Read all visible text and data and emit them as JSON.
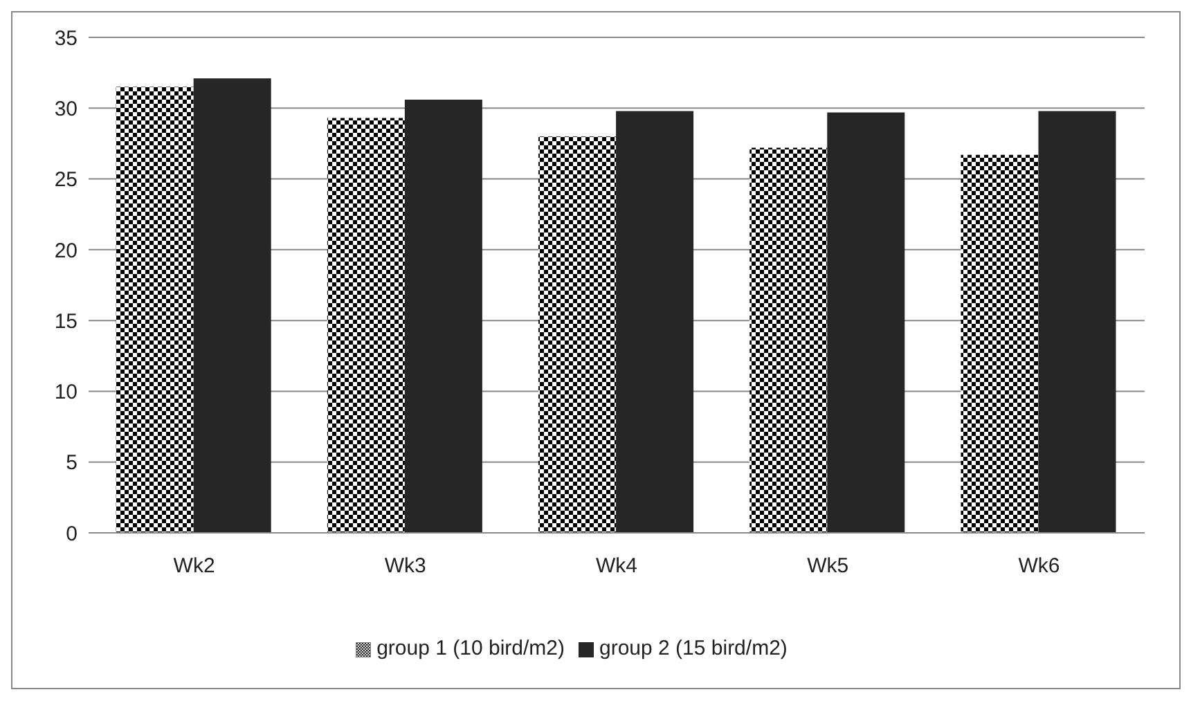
{
  "chart_data": {
    "type": "bar",
    "categories": [
      "Wk2",
      "Wk3",
      "Wk4",
      "Wk5",
      "Wk6"
    ],
    "series": [
      {
        "name": "group 1 (10 bird/m2)",
        "color": "#000000",
        "values": [
          31.5,
          29.3,
          28.0,
          27.2,
          26.7
        ]
      },
      {
        "name": "group 2 (15 bird/m2)",
        "color": "#262626",
        "values": [
          32.1,
          30.6,
          29.8,
          29.7,
          29.8
        ]
      }
    ],
    "ylim": [
      0,
      35
    ],
    "yticks": [
      0,
      5,
      10,
      15,
      20,
      25,
      30,
      35
    ],
    "grid": "y",
    "legend": "bottom"
  }
}
